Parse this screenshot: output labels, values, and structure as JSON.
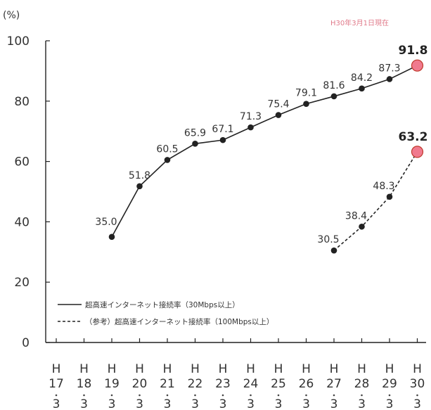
{
  "chart_data": {
    "type": "line",
    "unit_label": "(%)",
    "note": "H30年3月1日現在",
    "x": [
      "H17",
      "H18",
      "H19",
      "H20",
      "H21",
      "H22",
      "H23",
      "H24",
      "H25",
      "H26",
      "H27",
      "H28",
      "H29",
      "H30"
    ],
    "x_sub": "3",
    "ylim": [
      0,
      100
    ],
    "yticks": [
      0,
      20,
      40,
      60,
      80,
      100
    ],
    "grid": false,
    "legend_position": "lower-left",
    "series": [
      {
        "name": "超高速インターネット接続率（30Mbps以上）",
        "line_style": "solid",
        "values": [
          null,
          null,
          35.0,
          51.8,
          60.5,
          65.9,
          67.1,
          71.3,
          75.4,
          79.1,
          81.6,
          84.2,
          87.3,
          91.8
        ]
      },
      {
        "name": "（参考）超高速インターネット接続率（100Mbps以上）",
        "line_style": "dashed",
        "values": [
          null,
          null,
          null,
          null,
          null,
          null,
          null,
          null,
          null,
          null,
          30.5,
          38.4,
          48.3,
          63.2
        ]
      }
    ]
  },
  "colors": {
    "line": "#222222",
    "highlight_fill": "#f07a8e",
    "highlight_stroke": "#c0392b",
    "axis": "#222222"
  }
}
